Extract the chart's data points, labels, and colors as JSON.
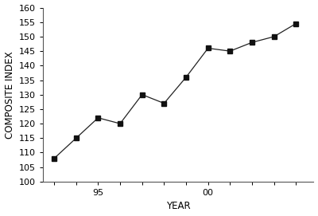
{
  "years": [
    1993,
    1994,
    1995,
    1996,
    1997,
    1998,
    1999,
    2000,
    2001,
    2002,
    2003,
    2004
  ],
  "values": [
    108,
    115,
    122,
    120,
    130,
    127,
    136,
    146,
    145,
    148,
    150,
    154.5
  ],
  "xlabel": "YEAR",
  "ylabel": "COMPOSITE INDEX",
  "ylim": [
    100,
    160
  ],
  "yticks": [
    100,
    105,
    110,
    115,
    120,
    125,
    130,
    135,
    140,
    145,
    150,
    155,
    160
  ],
  "xlim": [
    1992.5,
    2004.8
  ],
  "line_color": "#222222",
  "marker": "s",
  "marker_size": 4,
  "marker_color": "#111111",
  "bg_color": "#ffffff",
  "axis_label_fontsize": 8.5,
  "tick_label_fontsize": 8
}
